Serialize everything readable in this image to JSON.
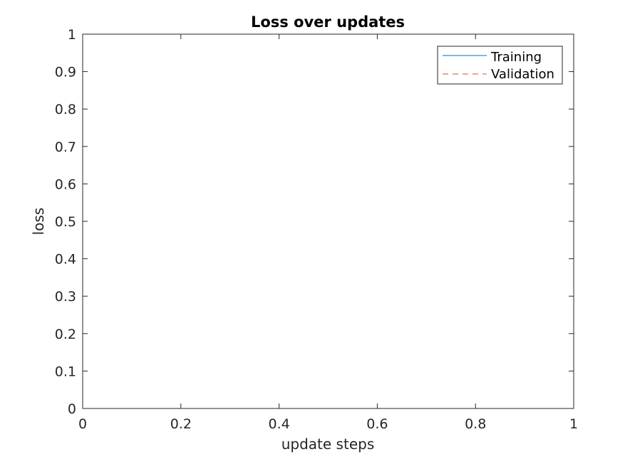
{
  "chart_data": {
    "type": "line",
    "title": "Loss over updates",
    "xlabel": "update steps",
    "ylabel": "loss",
    "xlim": [
      0,
      1
    ],
    "ylim": [
      0,
      1
    ],
    "x_ticks": [
      "0",
      "0.2",
      "0.4",
      "0.6",
      "0.8",
      "1"
    ],
    "y_ticks": [
      "0",
      "0.1",
      "0.2",
      "0.3",
      "0.4",
      "0.5",
      "0.6",
      "0.7",
      "0.8",
      "0.9",
      "1"
    ],
    "grid": false,
    "legend_position": "top-right",
    "series": [
      {
        "name": "Training",
        "line_style": "solid",
        "color": "#0072BD",
        "x": [],
        "y": []
      },
      {
        "name": "Validation",
        "line_style": "dashed",
        "color": "#D95319",
        "x": [],
        "y": []
      }
    ]
  }
}
